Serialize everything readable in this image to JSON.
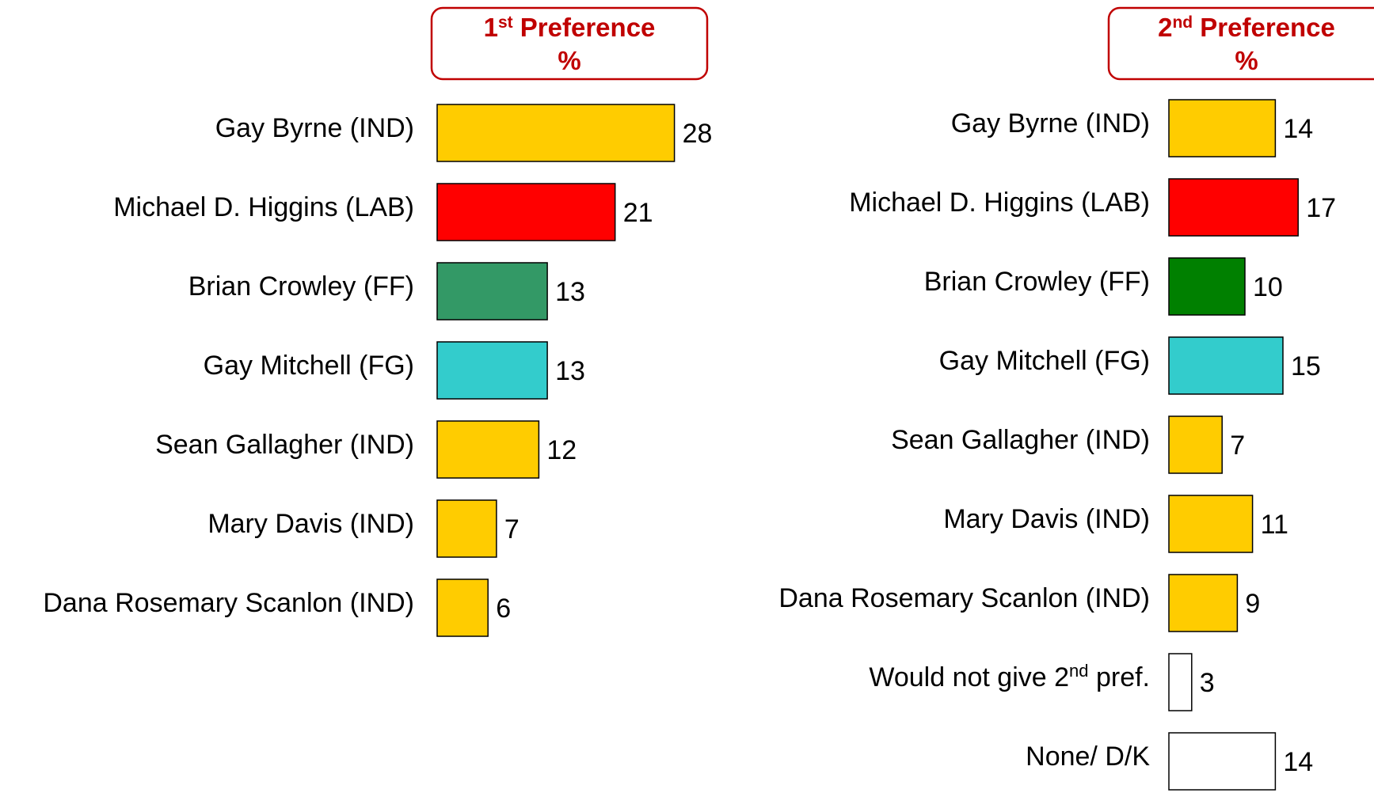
{
  "colors": {
    "IND": "#FFCC00",
    "LAB": "#FF0000",
    "FF_first": "#339966",
    "FF_second": "#008000",
    "FG": "#33CCCC",
    "none": "#FFFFFF",
    "header_text": "#C00000",
    "header_border": "#C00000"
  },
  "chart_data": [
    {
      "type": "bar",
      "orientation": "horizontal",
      "header": {
        "main": "1",
        "sup": "st",
        "rest": " Preference",
        "line2": "%"
      },
      "categories": [
        "Gay Byrne (IND)",
        "Michael D. Higgins (LAB)",
        "Brian Crowley (FF)",
        "Gay Mitchell (FG)",
        "Sean Gallagher (IND)",
        "Mary Davis (IND)",
        "Dana Rosemary Scanlon (IND)"
      ],
      "values": [
        28,
        21,
        13,
        13,
        12,
        7,
        6
      ],
      "bar_colors": [
        "IND",
        "LAB",
        "FF_first",
        "FG",
        "IND",
        "IND",
        "IND"
      ],
      "grid": false,
      "legend": "none"
    },
    {
      "type": "bar",
      "orientation": "horizontal",
      "header": {
        "main": "2",
        "sup": "nd",
        "rest": "  Preference",
        "line2": "%"
      },
      "categories": [
        {
          "text": "Gay Byrne (IND)"
        },
        {
          "text": "Michael D. Higgins (LAB)"
        },
        {
          "text": "Brian Crowley (FF)"
        },
        {
          "text": "Gay Mitchell (FG)"
        },
        {
          "text": "Sean Gallagher (IND)"
        },
        {
          "text": "Mary Davis (IND)"
        },
        {
          "text": "Dana Rosemary Scanlon (IND)"
        },
        {
          "text": "Would not give 2",
          "sup": "nd",
          "tail": " pref."
        },
        {
          "text": "None/ D/K"
        }
      ],
      "values": [
        14,
        17,
        10,
        15,
        7,
        11,
        9,
        3,
        14
      ],
      "bar_colors": [
        "IND",
        "LAB",
        "FF_second",
        "FG",
        "IND",
        "IND",
        "IND",
        "none",
        "none"
      ],
      "grid": false,
      "legend": "none"
    }
  ]
}
